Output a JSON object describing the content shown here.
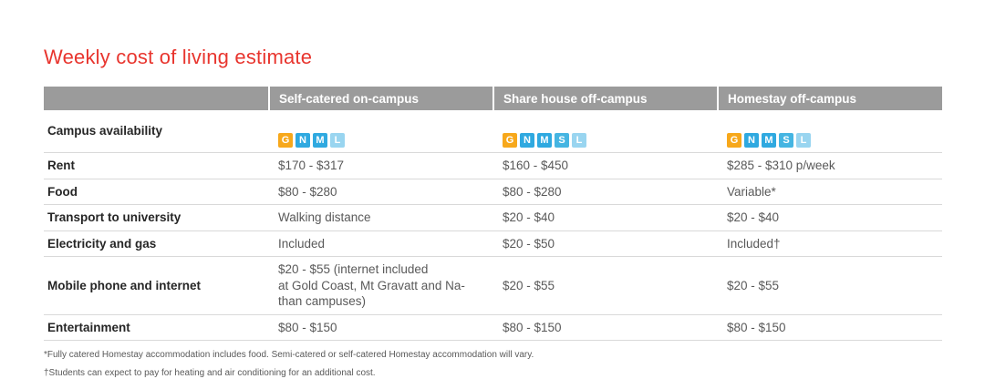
{
  "title": "Weekly cost of living estimate",
  "colors": {
    "title_red": "#e8352e",
    "header_bg": "#9b9b9b",
    "badge_G": "#f7a81b",
    "badge_N": "#2fa9e0",
    "badge_M": "#2fa9e0",
    "badge_S": "#45b5e2",
    "badge_L": "#99d5f0"
  },
  "table": {
    "headers": [
      "",
      "Self-catered on-campus",
      "Share house off-campus",
      "Homestay off-campus"
    ],
    "campus_row": {
      "label": "Campus availability",
      "cols": [
        {
          "badges": [
            "G",
            "N",
            "M",
            "L"
          ]
        },
        {
          "badges": [
            "G",
            "N",
            "M",
            "S",
            "L"
          ]
        },
        {
          "badges": [
            "G",
            "N",
            "M",
            "S",
            "L"
          ]
        }
      ]
    },
    "rows": [
      {
        "label": "Rent",
        "cells": [
          "$170 - $317",
          "$160 - $450",
          "$285 - $310 p/week"
        ]
      },
      {
        "label": "Food",
        "cells": [
          "$80 - $280",
          "$80 - $280",
          "Variable*"
        ]
      },
      {
        "label": "Transport to university",
        "cells": [
          "Walking distance",
          "$20 - $40",
          "$20 - $40"
        ]
      },
      {
        "label": "Electricity and gas",
        "cells": [
          "Included",
          "$20 - $50",
          "Included†"
        ]
      },
      {
        "label": "Mobile phone and internet",
        "cells": [
          "$20 - $55 (internet included\nat Gold Coast, Mt Gravatt and Na-\nthan campuses)",
          "$20 - $55",
          "$20 - $55"
        ]
      },
      {
        "label": "Entertainment",
        "cells": [
          "$80 - $150",
          "$80 - $150",
          "$80 - $150"
        ]
      }
    ]
  },
  "footnotes": [
    "*Fully catered Homestay accommodation includes food. Semi-catered or self-catered Homestay accommodation will vary.",
    "†Students can expect to pay for heating and air conditioning for an additional cost."
  ]
}
